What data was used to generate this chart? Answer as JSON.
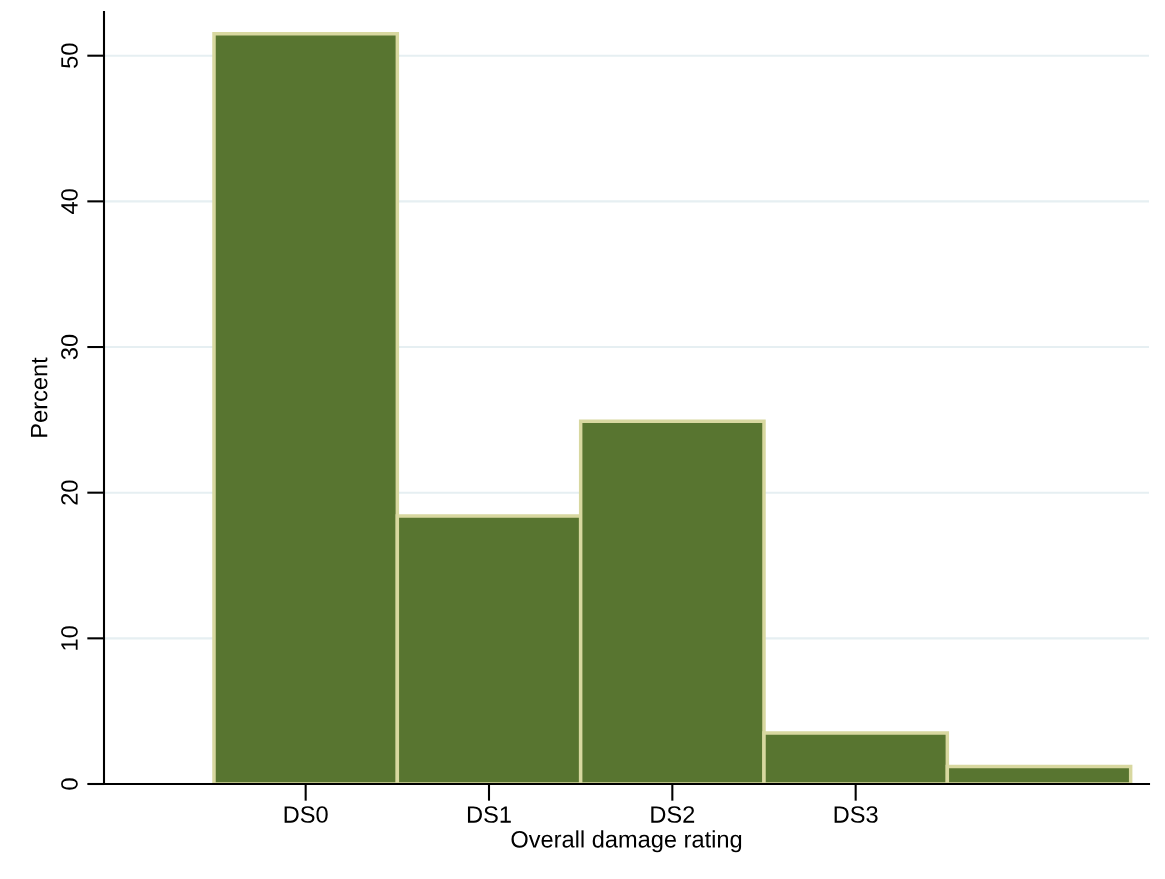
{
  "chart_data": {
    "type": "bar",
    "xlabel": "Overall damage rating",
    "ylabel": "Percent",
    "categories": [
      "DS0",
      "DS1",
      "DS2",
      "DS3",
      null
    ],
    "values": [
      51.5,
      18.4,
      24.9,
      3.5,
      1.2
    ],
    "color": "#587530",
    "ylim": [
      0,
      53
    ],
    "yticks": [
      0,
      10,
      20,
      30,
      40,
      50
    ],
    "grid": "y"
  }
}
